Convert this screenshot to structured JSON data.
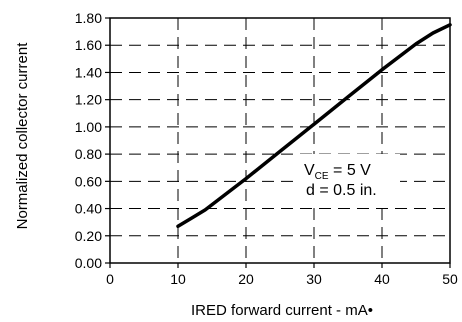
{
  "chart_data": {
    "type": "line",
    "xlabel": "IRED forward current - mA•",
    "ylabel": "Normalized collector current",
    "xlim": [
      0,
      50
    ],
    "ylim": [
      0,
      1.8
    ],
    "x_ticks": [
      "0",
      "10",
      "20",
      "30",
      "40",
      "50"
    ],
    "y_ticks": [
      "0.00",
      "0.20",
      "0.40",
      "0.60",
      "0.80",
      "1.00",
      "1.20",
      "1.40",
      "1.60",
      "1.80"
    ],
    "grid": "dashed",
    "series": [
      {
        "x": [
          10,
          12,
          14,
          20,
          25,
          30,
          35,
          40,
          45,
          47.5,
          50
        ],
        "y": [
          0.27,
          0.33,
          0.39,
          0.62,
          0.82,
          1.02,
          1.22,
          1.42,
          1.61,
          1.69,
          1.75
        ]
      }
    ],
    "annotation": {
      "v_main": "V",
      "v_sub": "CE",
      "v_rest": " = 5 V",
      "d_line": "d = 0.5 in."
    }
  }
}
